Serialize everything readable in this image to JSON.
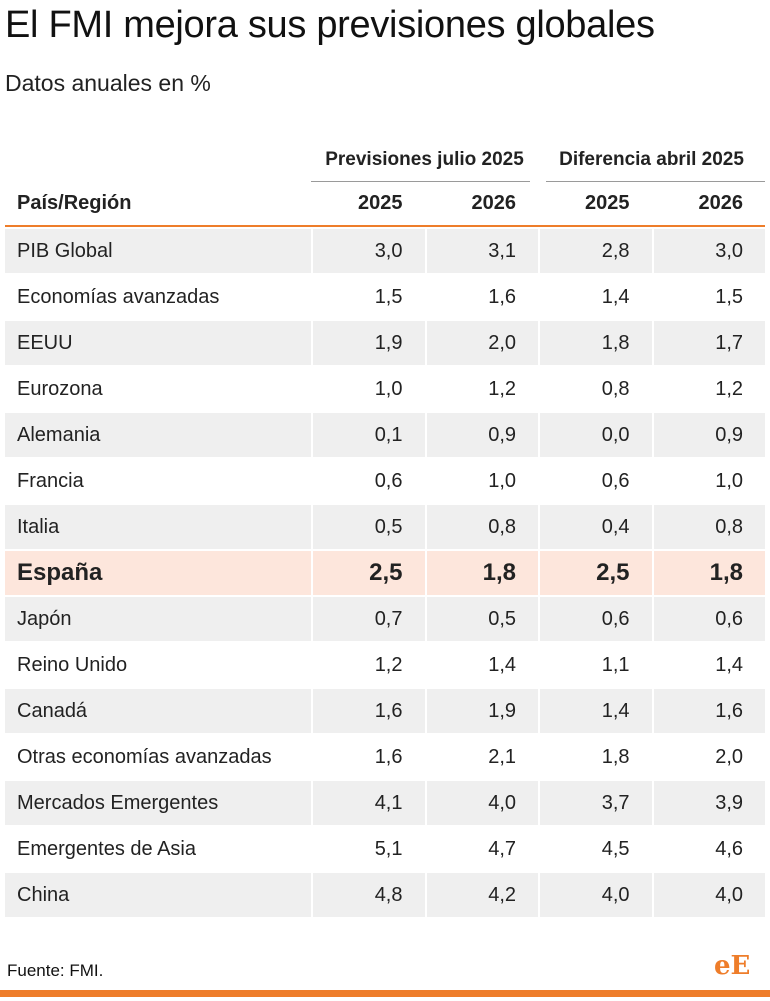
{
  "title": "El FMI mejora sus previsiones globales",
  "subtitle": "Datos anuales en %",
  "chart_data": {
    "type": "table",
    "column_groups": [
      {
        "label": "Previsiones julio 2025",
        "span": 2
      },
      {
        "label": "Diferencia abril 2025",
        "span": 2
      }
    ],
    "columns": [
      "País/Región",
      "2025",
      "2026",
      "2025",
      "2026"
    ],
    "highlight_row": "España",
    "rows": [
      {
        "name": "PIB Global",
        "values": [
          "3,0",
          "3,1",
          "2,8",
          "3,0"
        ]
      },
      {
        "name": "Economías avanzadas",
        "values": [
          "1,5",
          "1,6",
          "1,4",
          "1,5"
        ]
      },
      {
        "name": "EEUU",
        "values": [
          "1,9",
          "2,0",
          "1,8",
          "1,7"
        ]
      },
      {
        "name": "Eurozona",
        "values": [
          "1,0",
          "1,2",
          "0,8",
          "1,2"
        ]
      },
      {
        "name": "Alemania",
        "values": [
          "0,1",
          "0,9",
          "0,0",
          "0,9"
        ]
      },
      {
        "name": "Francia",
        "values": [
          "0,6",
          "1,0",
          "0,6",
          "1,0"
        ]
      },
      {
        "name": "Italia",
        "values": [
          "0,5",
          "0,8",
          "0,4",
          "0,8"
        ]
      },
      {
        "name": "España",
        "values": [
          "2,5",
          "1,8",
          "2,5",
          "1,8"
        ]
      },
      {
        "name": "Japón",
        "values": [
          "0,7",
          "0,5",
          "0,6",
          "0,6"
        ]
      },
      {
        "name": "Reino Unido",
        "values": [
          "1,2",
          "1,4",
          "1,1",
          "1,4"
        ]
      },
      {
        "name": "Canadá",
        "values": [
          "1,6",
          "1,9",
          "1,4",
          "1,6"
        ]
      },
      {
        "name": "Otras economías avanzadas",
        "values": [
          "1,6",
          "2,1",
          "1,8",
          "2,0"
        ]
      },
      {
        "name": "Mercados Emergentes",
        "values": [
          "4,1",
          "4,0",
          "3,7",
          "3,9"
        ]
      },
      {
        "name": "Emergentes de Asia",
        "values": [
          "5,1",
          "4,7",
          "4,5",
          "4,6"
        ]
      },
      {
        "name": "China",
        "values": [
          "4,8",
          "4,2",
          "4,0",
          "4,0"
        ]
      }
    ]
  },
  "footer": {
    "source": "Fuente: FMI.",
    "logo_text": "eE"
  },
  "colors": {
    "accent": "#ee7d2a",
    "row_stripe": "#efefef",
    "highlight": "#fde6dc"
  }
}
